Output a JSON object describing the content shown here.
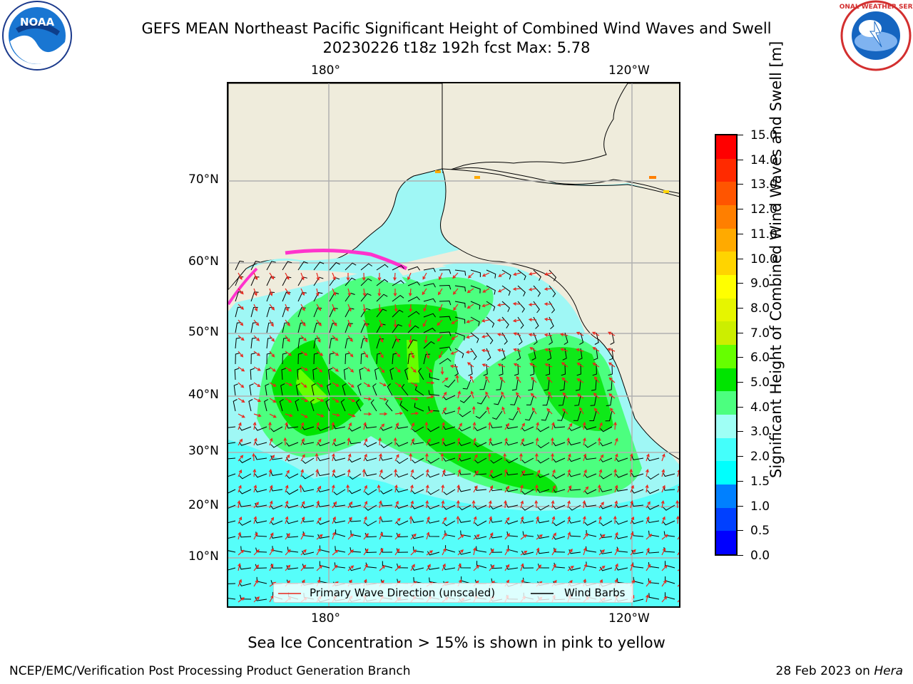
{
  "title_line1": "GEFS MEAN Northeast Pacific Significant Height of Combined Wind Waves and Swell",
  "title_line2": "20230226 t18z 192h fcst   Max: 5.78",
  "top_lon_labels": [
    "180°",
    "120°W"
  ],
  "bottom_lon_labels": [
    "180°",
    "120°W"
  ],
  "lat_labels": [
    "70°N",
    "60°N",
    "50°N",
    "40°N",
    "30°N",
    "20°N",
    "10°N"
  ],
  "legend": {
    "wave_label": "Primary Wave Direction (unscaled)",
    "wind_label": "Wind Barbs",
    "wave_color": "#e8271d",
    "wind_color": "#000000"
  },
  "colorbar": {
    "ticks": [
      "15.0",
      "14.0",
      "13.0",
      "12.0",
      "11.0",
      "10.0",
      "9.0",
      "8.0",
      "7.0",
      "6.0",
      "5.0",
      "4.0",
      "3.0",
      "2.0",
      "1.5",
      "1.0",
      "0.5",
      "0.0"
    ],
    "colors_top_to_bottom": [
      "#ff0000",
      "#ff2a00",
      "#ff5500",
      "#ff7f00",
      "#ffaa00",
      "#ffd400",
      "#ffff00",
      "#e6f500",
      "#ccee00",
      "#66ff00",
      "#00e400",
      "#4cff7f",
      "#9ffff5",
      "#44fffb",
      "#00fffd",
      "#0080ff",
      "#0040ff",
      "#0000ff"
    ],
    "label": "Significant Height of Combined Wind Waves and Swell [m]"
  },
  "ice_note": "Sea Ice Concentration > 15% is shown in pink to yellow",
  "footer_left": "NCEP/EMC/Verification Post Processing Product Generation Branch",
  "footer_right_date": "28 Feb 2023 on ",
  "footer_right_host": "Hera",
  "logos": {
    "noaa_text": "NOAA",
    "nws_text": "NATIONAL WEATHER SERVICE"
  },
  "colors": {
    "land": "#efecdc",
    "ocean_low": "#9ff7f5",
    "ocean_mid": "#44fffb",
    "wave_3_4": "#4cff7f",
    "wave_4_5": "#00e400",
    "gridline": "#b0b0b0"
  }
}
